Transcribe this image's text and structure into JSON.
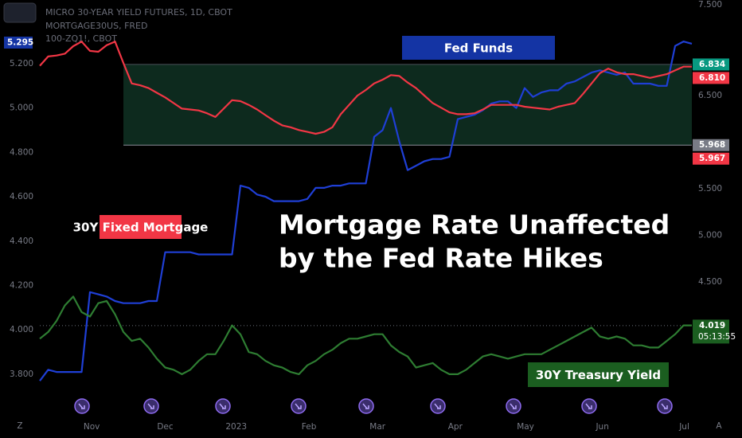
{
  "header": {
    "lines": [
      "MICRO 30-YEAR YIELD FUTURES, 1D, CBOT",
      "MORTGAGE30US, FRED",
      "100-ZQ1!, CBOT"
    ]
  },
  "footer": {
    "left": "Z",
    "right": "A"
  },
  "chart_data": {
    "type": "line",
    "title": [
      "Mortgage Rate Unaffected",
      "by the Fed Rate Hikes"
    ],
    "xlim": [
      0,
      78
    ],
    "xticks": [
      {
        "value": 6.2,
        "label": "Nov"
      },
      {
        "value": 15.0,
        "label": "Dec"
      },
      {
        "value": 23.5,
        "label": "2023"
      },
      {
        "value": 32.2,
        "label": "Feb"
      },
      {
        "value": 40.4,
        "label": "Mar"
      },
      {
        "value": 49.7,
        "label": "Apr"
      },
      {
        "value": 58.1,
        "label": "May"
      },
      {
        "value": 67.3,
        "label": "Jun"
      },
      {
        "value": 77.1,
        "label": "Jul"
      }
    ],
    "ylim": [
      3.62,
      5.487
    ],
    "yticks": [
      {
        "value": 3.8,
        "label": "3.800"
      },
      {
        "value": 4.0,
        "label": "4.000"
      },
      {
        "value": 4.2,
        "label": "4.200"
      },
      {
        "value": 4.4,
        "label": "4.400"
      },
      {
        "value": 4.6,
        "label": "4.600"
      },
      {
        "value": 4.8,
        "label": "4.800"
      },
      {
        "value": 5.0,
        "label": "5.000"
      },
      {
        "value": 5.2,
        "label": "5.200"
      }
    ],
    "y2lim": [
      3.08,
      7.526
    ],
    "y2ticks": [
      {
        "value": 4.5,
        "label": "4.500"
      },
      {
        "value": 5.0,
        "label": "5.000"
      },
      {
        "value": 5.5,
        "label": "5.500"
      },
      {
        "value": 6.5,
        "label": "6.500"
      },
      {
        "value": 7.5,
        "label": "7.500"
      }
    ],
    "grid": false,
    "series": [
      {
        "name": "Fed Funds",
        "color": "#1f3fd6",
        "label_color": "#1434a4",
        "axis": "y",
        "values": [
          3.77,
          3.82,
          3.81,
          3.81,
          3.81,
          3.81,
          4.17,
          4.16,
          4.15,
          4.13,
          4.12,
          4.12,
          4.12,
          4.13,
          4.13,
          4.35,
          4.35,
          4.35,
          4.35,
          4.34,
          4.34,
          4.34,
          4.34,
          4.34,
          4.65,
          4.64,
          4.61,
          4.6,
          4.58,
          4.58,
          4.58,
          4.58,
          4.59,
          4.64,
          4.64,
          4.65,
          4.65,
          4.66,
          4.66,
          4.66,
          4.87,
          4.9,
          5.0,
          4.85,
          4.72,
          4.74,
          4.76,
          4.77,
          4.77,
          4.78,
          4.95,
          4.96,
          4.97,
          4.99,
          5.02,
          5.03,
          5.03,
          5.0,
          5.09,
          5.05,
          5.07,
          5.08,
          5.08,
          5.11,
          5.12,
          5.14,
          5.16,
          5.17,
          5.16,
          5.15,
          5.16,
          5.11,
          5.11,
          5.11,
          5.1,
          5.1,
          5.28,
          5.3,
          5.29
        ]
      },
      {
        "name": "30Y Fixed Mortgage",
        "color": "#f23645",
        "label_color": "#f23645",
        "axis": "y2",
        "values": [
          6.82,
          6.92,
          6.93,
          6.95,
          7.03,
          7.08,
          6.98,
          6.97,
          7.04,
          7.08,
          6.85,
          6.63,
          6.61,
          6.58,
          6.53,
          6.48,
          6.42,
          6.36,
          6.35,
          6.34,
          6.31,
          6.27,
          6.36,
          6.45,
          6.44,
          6.4,
          6.35,
          6.29,
          6.23,
          6.18,
          6.16,
          6.13,
          6.11,
          6.09,
          6.11,
          6.16,
          6.3,
          6.4,
          6.5,
          6.56,
          6.63,
          6.67,
          6.72,
          6.71,
          6.64,
          6.58,
          6.5,
          6.42,
          6.37,
          6.32,
          6.3,
          6.3,
          6.31,
          6.35,
          6.4,
          6.4,
          6.4,
          6.4,
          6.38,
          6.37,
          6.36,
          6.35,
          6.38,
          6.4,
          6.42,
          6.52,
          6.63,
          6.74,
          6.79,
          6.75,
          6.73,
          6.73,
          6.71,
          6.69,
          6.71,
          6.73,
          6.77,
          6.81,
          6.81
        ]
      },
      {
        "name": "30Y Treasury Yield",
        "color": "#2e7d32",
        "label_color": "#1b5e20",
        "axis": "y",
        "values": [
          3.96,
          3.99,
          4.04,
          4.11,
          4.15,
          4.08,
          4.06,
          4.12,
          4.13,
          4.07,
          3.99,
          3.95,
          3.96,
          3.92,
          3.87,
          3.83,
          3.82,
          3.8,
          3.82,
          3.86,
          3.89,
          3.89,
          3.95,
          4.02,
          3.98,
          3.9,
          3.89,
          3.86,
          3.84,
          3.83,
          3.81,
          3.8,
          3.84,
          3.86,
          3.89,
          3.91,
          3.94,
          3.96,
          3.96,
          3.97,
          3.98,
          3.98,
          3.93,
          3.9,
          3.88,
          3.83,
          3.84,
          3.85,
          3.82,
          3.8,
          3.8,
          3.82,
          3.85,
          3.88,
          3.89,
          3.88,
          3.87,
          3.88,
          3.89,
          3.89,
          3.89,
          3.91,
          3.93,
          3.95,
          3.97,
          3.99,
          4.01,
          3.97,
          3.96,
          3.97,
          3.96,
          3.93,
          3.93,
          3.92,
          3.92,
          3.95,
          3.98,
          4.02,
          4.02
        ]
      }
    ],
    "highlight": {
      "axis": "y2",
      "from": 5.968,
      "to": 6.834,
      "x_from": 10,
      "color": "#0d2a1e"
    },
    "price_labels": [
      {
        "value": 6.834,
        "label": "6.834",
        "color": "#089981",
        "axis": "y2"
      },
      {
        "value": 6.81,
        "label": "6.810",
        "color": "#f23645",
        "axis": "y2"
      },
      {
        "value": 5.968,
        "label": "5.968",
        "color": "#787b86",
        "axis": "y2"
      },
      {
        "value": 5.967,
        "label": "5.967",
        "color": "#f23645",
        "axis": "y2"
      },
      {
        "value": 4.019,
        "label": "4.019",
        "color": "#1b5e20",
        "axis": "y",
        "extra": "05:13:55",
        "line": true
      }
    ],
    "left_labels": [
      {
        "value": 5.295,
        "label": "5.295",
        "color": "#1434a4",
        "axis": "y"
      }
    ]
  }
}
